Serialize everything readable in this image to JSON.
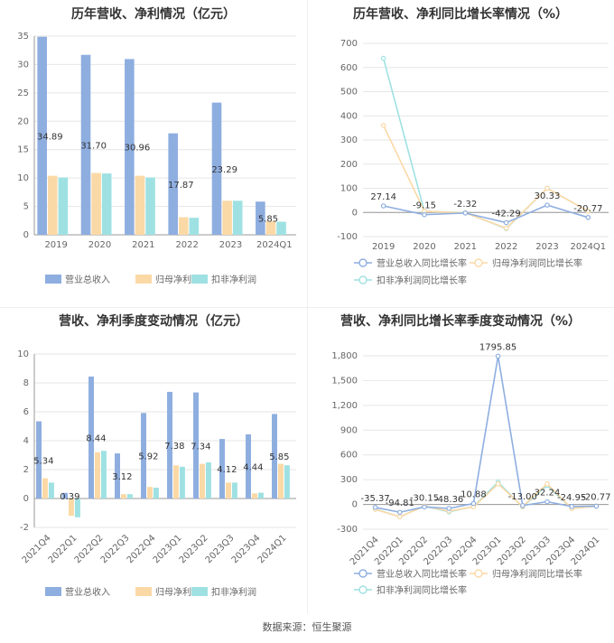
{
  "source_text": "数据来源：恒生聚源",
  "colors": {
    "revenue": "#8eaee0",
    "net_profit": "#fbd9a6",
    "deducted_profit": "#9fe1e2",
    "grid": "#e6e6e6",
    "axis": "#999999"
  },
  "chart_data": [
    {
      "type": "bar",
      "title": "历年营收、净利情况（亿元）",
      "categories": [
        "2019",
        "2020",
        "2021",
        "2022",
        "2023",
        "2024Q1"
      ],
      "ylim": [
        0,
        35
      ],
      "yticks": [
        0,
        5,
        10,
        15,
        20,
        25,
        30,
        35
      ],
      "series": [
        {
          "name": "营业总收入",
          "values": [
            34.89,
            31.7,
            30.96,
            17.87,
            23.29,
            5.85
          ]
        },
        {
          "name": "归母净利润",
          "values": [
            10.4,
            10.9,
            10.4,
            3.1,
            6.0,
            2.4
          ]
        },
        {
          "name": "扣非净利润",
          "values": [
            10.1,
            10.8,
            10.1,
            3.0,
            6.0,
            2.3
          ]
        }
      ],
      "data_labels": [
        "34.89",
        "31.70",
        "30.96",
        "17.87",
        "23.29",
        "5.85"
      ],
      "grid": true,
      "legend": "bottom"
    },
    {
      "type": "line",
      "title": "历年营收、净利同比增长率情况（%）",
      "categories": [
        "2019",
        "2020",
        "2021",
        "2022",
        "2023",
        "2024Q1"
      ],
      "ylim": [
        -100,
        700
      ],
      "yticks": [
        -100,
        0,
        100,
        200,
        300,
        400,
        500,
        600,
        700
      ],
      "series": [
        {
          "name": "营业总收入同比增长率",
          "values": [
            27.14,
            -9.15,
            -2.32,
            -42.29,
            30.33,
            -20.77
          ]
        },
        {
          "name": "归母净利润同比增长率",
          "values": [
            360,
            5,
            -2,
            -65,
            100,
            5
          ]
        },
        {
          "name": "扣非净利润同比增长率",
          "values": [
            638,
            5,
            -1,
            -67,
            100,
            5
          ]
        }
      ],
      "data_labels": [
        "27.14",
        "-9.15",
        "-2.32",
        "-42.29",
        "30.33",
        "-20.77"
      ],
      "grid": true,
      "legend": "bottom"
    },
    {
      "type": "bar",
      "title": "营收、净利季度变动情况（亿元）",
      "categories": [
        "2021Q4",
        "2022Q1",
        "2022Q2",
        "2022Q3",
        "2022Q4",
        "2023Q1",
        "2023Q2",
        "2023Q3",
        "2023Q4",
        "2024Q1"
      ],
      "ylim": [
        -2,
        10
      ],
      "yticks": [
        -2,
        0,
        2,
        4,
        6,
        8,
        10
      ],
      "series": [
        {
          "name": "营业总收入",
          "values": [
            5.34,
            0.39,
            8.44,
            3.12,
            5.92,
            7.38,
            7.34,
            4.12,
            4.44,
            5.85
          ]
        },
        {
          "name": "归母净利润",
          "values": [
            1.4,
            -1.2,
            3.2,
            0.3,
            0.8,
            2.3,
            2.4,
            1.1,
            0.35,
            2.4
          ]
        },
        {
          "name": "扣非净利润",
          "values": [
            1.1,
            -1.3,
            3.3,
            0.3,
            0.75,
            2.2,
            2.5,
            1.1,
            0.4,
            2.3
          ]
        }
      ],
      "data_labels": [
        "5.34",
        "0.39",
        "8.44",
        "3.12",
        "5.92",
        "7.38",
        "7.34",
        "4.12",
        "4.44",
        "5.85"
      ],
      "grid": true,
      "legend": "bottom"
    },
    {
      "type": "line",
      "title": "营收、净利同比增长率季度变动情况（%）",
      "categories": [
        "2021Q4",
        "2022Q1",
        "2022Q2",
        "2022Q3",
        "2022Q4",
        "2023Q1",
        "2023Q2",
        "2023Q3",
        "2023Q4",
        "2024Q1"
      ],
      "ylim": [
        -300,
        1800
      ],
      "yticks": [
        -300,
        0,
        300,
        600,
        900,
        1200,
        1500,
        1800
      ],
      "ytick_labels": [
        "-300",
        "0",
        "300",
        "600",
        "900",
        "1,200",
        "1,500",
        "1,800"
      ],
      "series": [
        {
          "name": "营业总收入同比增长率",
          "values": [
            -35.37,
            -94.81,
            -30.15,
            -48.36,
            10.88,
            1795.85,
            -13.0,
            32.24,
            -24.95,
            -20.77
          ]
        },
        {
          "name": "归母净利润同比增长率",
          "values": [
            -60,
            -150,
            -20,
            -80,
            -30,
            250,
            -25,
            250,
            -50,
            -20
          ]
        },
        {
          "name": "扣非净利润同比增长率",
          "values": [
            -55,
            -150,
            -20,
            -90,
            -25,
            270,
            -30,
            230,
            -50,
            -20
          ]
        }
      ],
      "data_labels": [
        "-35.37",
        "-94.81",
        "-30.15",
        "-48.36",
        "10.88",
        "1795.85",
        "-13.00",
        "32.24",
        "-24.95",
        "-20.77"
      ],
      "grid": true,
      "legend": "bottom"
    }
  ]
}
